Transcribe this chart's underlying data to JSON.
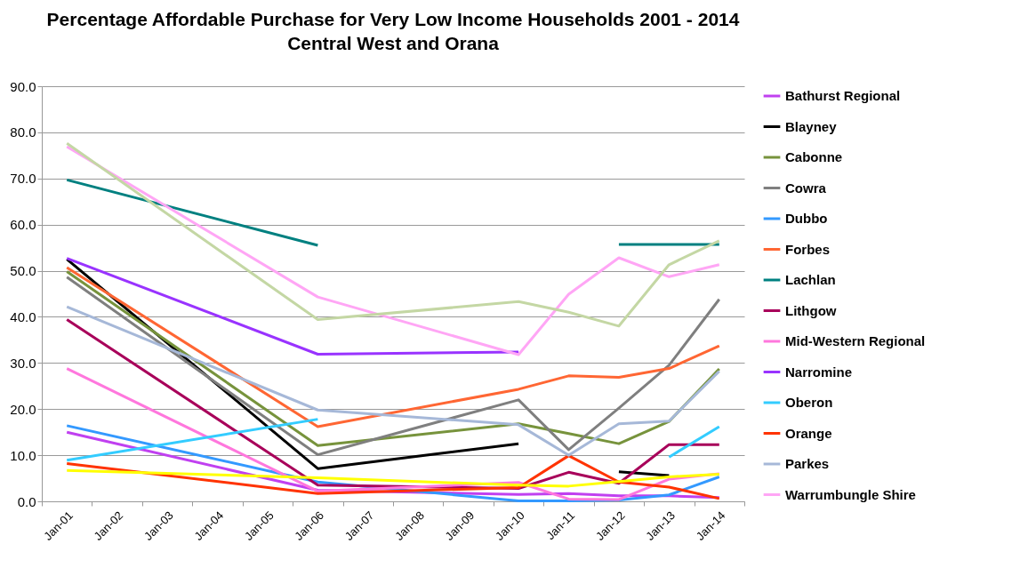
{
  "chart_data": {
    "type": "line",
    "title": "Percentage Affordable Purchase for Very Low Income Households 2001 - 2014",
    "subtitle": "Central West and Orana",
    "categories": [
      "Jan-01",
      "Jan-02",
      "Jan-03",
      "Jan-04",
      "Jan-05",
      "Jan-06",
      "Jan-07",
      "Jan-08",
      "Jan-09",
      "Jan-10",
      "Jan-11",
      "Jan-12",
      "Jan-13",
      "Jan-14"
    ],
    "ylim": [
      0,
      90
    ],
    "yticks": [
      {
        "value": 0,
        "label": "0.0"
      },
      {
        "value": 10,
        "label": "10.0"
      },
      {
        "value": 20,
        "label": "20.0"
      },
      {
        "value": 30,
        "label": "30.0"
      },
      {
        "value": 40,
        "label": "40.0"
      },
      {
        "value": 50,
        "label": "50.0"
      },
      {
        "value": 60,
        "label": "60.0"
      },
      {
        "value": 70,
        "label": "70.0"
      },
      {
        "value": 80,
        "label": "80.0"
      },
      {
        "value": 90,
        "label": "90.0"
      }
    ],
    "grid": "y",
    "legend": "right",
    "series": [
      {
        "name": "Bathurst Regional",
        "color": "#c040f0",
        "x": [
          "Jan-01",
          "Jan-06",
          "Jan-10",
          "Jan-11",
          "Jan-12",
          "Jan-13",
          "Jan-14"
        ],
        "values": [
          15.0,
          2.4,
          1.5,
          1.7,
          1.2,
          1.2,
          0.8
        ]
      },
      {
        "name": "Blayney",
        "color": "#000000",
        "x": [
          "Jan-01",
          "Jan-06",
          "Jan-10",
          "Jan-11",
          "Jan-12",
          "Jan-13",
          "Jan-14"
        ],
        "values": [
          52.5,
          7.1,
          12.5,
          null,
          6.4,
          5.6,
          null
        ]
      },
      {
        "name": "Cabonne",
        "color": "#77933c",
        "x": [
          "Jan-01",
          "Jan-06",
          "Jan-10",
          "Jan-11",
          "Jan-12",
          "Jan-13",
          "Jan-14"
        ],
        "values": [
          49.8,
          12.1,
          16.8,
          14.7,
          12.5,
          17.3,
          28.7
        ]
      },
      {
        "name": "Cowra",
        "color": "#7f7f7f",
        "x": [
          "Jan-01",
          "Jan-06",
          "Jan-10",
          "Jan-11",
          "Jan-12",
          "Jan-13",
          "Jan-14"
        ],
        "values": [
          48.6,
          10.1,
          22.0,
          11.2,
          20.2,
          29.5,
          43.8
        ]
      },
      {
        "name": "Dubbo",
        "color": "#3399ff",
        "x": [
          "Jan-01",
          "Jan-06",
          "Jan-10",
          "Jan-11",
          "Jan-12",
          "Jan-13",
          "Jan-14"
        ],
        "values": [
          16.4,
          4.2,
          0.1,
          0.1,
          0.3,
          1.4,
          5.3
        ]
      },
      {
        "name": "Forbes",
        "color": "#ff6633",
        "x": [
          "Jan-01",
          "Jan-06",
          "Jan-10",
          "Jan-11",
          "Jan-12",
          "Jan-13",
          "Jan-14"
        ],
        "values": [
          50.7,
          16.2,
          24.3,
          27.2,
          26.9,
          28.8,
          33.7
        ]
      },
      {
        "name": "Lachlan",
        "color": "#008080",
        "x": [
          "Jan-01",
          "Jan-06",
          "Jan-10",
          "Jan-11",
          "Jan-12",
          "Jan-13",
          "Jan-14"
        ],
        "values": [
          69.7,
          55.5,
          null,
          null,
          55.7,
          55.7,
          55.7
        ]
      },
      {
        "name": "Lithgow",
        "color": "#a8005a",
        "x": [
          "Jan-01",
          "Jan-06",
          "Jan-10",
          "Jan-11",
          "Jan-12",
          "Jan-13",
          "Jan-14"
        ],
        "values": [
          39.4,
          3.5,
          2.8,
          6.3,
          3.9,
          12.3,
          12.3
        ]
      },
      {
        "name": "Mid-Western Regional",
        "color": "#ff77dd",
        "x": [
          "Jan-01",
          "Jan-06",
          "Jan-10",
          "Jan-11",
          "Jan-12",
          "Jan-13",
          "Jan-14"
        ],
        "values": [
          28.8,
          2.2,
          4.1,
          0.5,
          0.4,
          4.8,
          6.0
        ]
      },
      {
        "name": "Narromine",
        "color": "#9933ff",
        "x": [
          "Jan-01",
          "Jan-06",
          "Jan-10",
          "Jan-11",
          "Jan-12",
          "Jan-13",
          "Jan-14"
        ],
        "values": [
          52.7,
          31.9,
          32.4,
          null,
          null,
          null,
          null
        ]
      },
      {
        "name": "Oberon",
        "color": "#33ccff",
        "x": [
          "Jan-01",
          "Jan-06",
          "Jan-10",
          "Jan-11",
          "Jan-12",
          "Jan-13",
          "Jan-14"
        ],
        "values": [
          8.9,
          17.8,
          null,
          null,
          null,
          9.6,
          16.2
        ]
      },
      {
        "name": "Orange",
        "color": "#ff3300",
        "x": [
          "Jan-01",
          "Jan-06",
          "Jan-10",
          "Jan-11",
          "Jan-12",
          "Jan-13",
          "Jan-14"
        ],
        "values": [
          8.2,
          1.7,
          3.0,
          9.9,
          4.2,
          3.1,
          0.6
        ]
      },
      {
        "name": "Parkes",
        "color": "#a6b8d8",
        "x": [
          "Jan-01",
          "Jan-06",
          "Jan-10",
          "Jan-11",
          "Jan-12",
          "Jan-13",
          "Jan-14"
        ],
        "values": [
          42.2,
          19.8,
          16.6,
          10.0,
          16.8,
          17.4,
          28.2
        ]
      },
      {
        "name": "Warrumbungle Shire",
        "color": "#ffa6f5",
        "x": [
          "Jan-01",
          "Jan-06",
          "Jan-10",
          "Jan-11",
          "Jan-12",
          "Jan-13",
          "Jan-14"
        ],
        "values": [
          76.9,
          44.3,
          31.8,
          44.9,
          52.8,
          48.7,
          51.3
        ]
      },
      {
        "color": "#c4d7a4",
        "x": [
          "Jan-01",
          "Jan-06",
          "Jan-10",
          "Jan-11",
          "Jan-12",
          "Jan-13",
          "Jan-14"
        ],
        "values": [
          77.6,
          39.4,
          43.3,
          41.0,
          38.0,
          51.3,
          56.5
        ]
      },
      {
        "color": "#ffff00",
        "x": [
          "Jan-01",
          "Jan-06",
          "Jan-10",
          "Jan-11",
          "Jan-12",
          "Jan-13",
          "Jan-14"
        ],
        "values": [
          6.7,
          5.1,
          3.5,
          3.3,
          4.3,
          5.3,
          5.9
        ]
      }
    ]
  }
}
